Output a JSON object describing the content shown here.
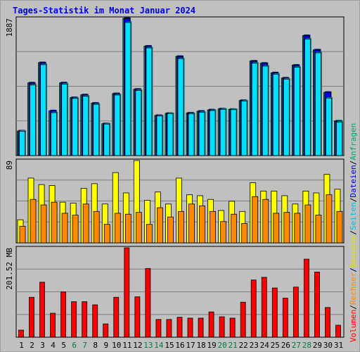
{
  "title": "Tages-Statistik im Monat Januar 2024",
  "colors": {
    "anfragen": "#00a878",
    "dateien": "#0000e0",
    "seiten": "#00e0ff",
    "besuche": "#ffff00",
    "rechner": "#ff8800",
    "volumen": "#ff0000",
    "weekend_label": "#008040",
    "weekday_label": "#000000",
    "title": "#0000ee"
  },
  "side_legend": {
    "volumen": "Volumen",
    "sep1": "/",
    "rechner": "Rechner",
    "sep2": "/",
    "besuche": "Besuche",
    "sep3": "/",
    "seiten": "Seiten",
    "sep4": "/",
    "dateien": "Dateien",
    "sep5": "/",
    "anfragen": "Anfragen"
  },
  "chart_data": [
    {
      "type": "bar",
      "panel": "requests",
      "ylabel_max": "1887",
      "ylim": [
        0,
        1887
      ],
      "categories": [
        "1",
        "2",
        "3",
        "4",
        "5",
        "6",
        "7",
        "8",
        "9",
        "10",
        "11",
        "12",
        "13",
        "14",
        "15",
        "16",
        "17",
        "18",
        "19",
        "20",
        "21",
        "22",
        "23",
        "24",
        "25",
        "26",
        "27",
        "28",
        "29",
        "30",
        "31"
      ],
      "weekend_days": [
        "6",
        "7",
        "13",
        "14",
        "20",
        "21",
        "27",
        "28"
      ],
      "series": [
        {
          "key": "anfragen",
          "values": [
            338,
            1000,
            1278,
            616,
            1000,
            797,
            836,
            720,
            438,
            852,
            1887,
            912,
            1504,
            552,
            580,
            1364,
            586,
            610,
            628,
            642,
            636,
            758,
            1300,
            1270,
            1138,
            1067,
            1244,
            1650,
            1453,
            870,
            475
          ]
        },
        {
          "key": "dateien",
          "values": [
            338,
            995,
            1274,
            614,
            998,
            795,
            832,
            718,
            436,
            848,
            1883,
            910,
            1502,
            550,
            578,
            1360,
            584,
            608,
            626,
            640,
            634,
            755,
            1296,
            1266,
            1136,
            1063,
            1240,
            1646,
            1450,
            867,
            473
          ]
        },
        {
          "key": "seiten",
          "values": [
            334,
            970,
            1250,
            590,
            983,
            786,
            815,
            705,
            433,
            833,
            1830,
            895,
            1480,
            545,
            576,
            1330,
            574,
            596,
            618,
            635,
            632,
            750,
            1270,
            1230,
            1117,
            1050,
            1214,
            1600,
            1413,
            790,
            460
          ]
        }
      ]
    },
    {
      "type": "bar",
      "panel": "visits",
      "ylabel_max": "89",
      "ylim": [
        0,
        89
      ],
      "categories": [
        "1",
        "2",
        "3",
        "4",
        "5",
        "6",
        "7",
        "8",
        "9",
        "10",
        "11",
        "12",
        "13",
        "14",
        "15",
        "16",
        "17",
        "18",
        "19",
        "20",
        "21",
        "22",
        "23",
        "24",
        "25",
        "26",
        "27",
        "28",
        "29",
        "30",
        "31"
      ],
      "series": [
        {
          "key": "besuche",
          "values": [
            25,
            70,
            63,
            62,
            44,
            43,
            59,
            64,
            42,
            76,
            54,
            89,
            46,
            55,
            42,
            70,
            52,
            51,
            47,
            35,
            45,
            34,
            65,
            56,
            56,
            51,
            42,
            56,
            54,
            74,
            58
          ]
        },
        {
          "key": "rechner",
          "values": [
            18,
            47,
            41,
            44,
            32,
            30,
            42,
            34,
            20,
            32,
            31,
            33,
            20,
            38,
            28,
            34,
            42,
            40,
            34,
            23,
            31,
            21,
            50,
            47,
            32,
            33,
            32,
            41,
            30,
            52,
            34
          ]
        }
      ]
    },
    {
      "type": "bar",
      "panel": "volume",
      "ylabel_max": "201.52 MB",
      "ylim": [
        0,
        201.52
      ],
      "categories": [
        "1",
        "2",
        "3",
        "4",
        "5",
        "6",
        "7",
        "8",
        "9",
        "10",
        "11",
        "12",
        "13",
        "14",
        "15",
        "16",
        "17",
        "18",
        "19",
        "20",
        "21",
        "22",
        "23",
        "24",
        "25",
        "26",
        "27",
        "28",
        "29",
        "30",
        "31"
      ],
      "series": [
        {
          "key": "volumen",
          "values": [
            16,
            90,
            124,
            54,
            102,
            80,
            80,
            73,
            30,
            90,
            201.52,
            91,
            155,
            40,
            40,
            45,
            43,
            43,
            57,
            46,
            43,
            79,
            129,
            135,
            111,
            88,
            113,
            176,
            147,
            67,
            27
          ]
        }
      ]
    }
  ]
}
